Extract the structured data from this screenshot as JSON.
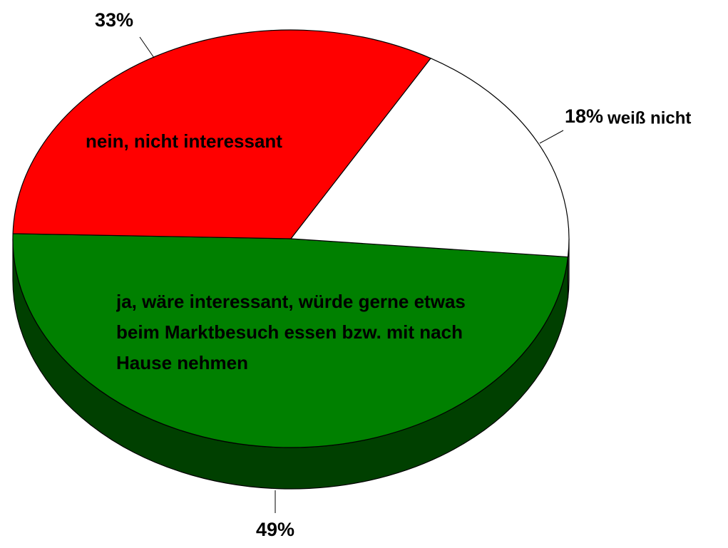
{
  "chart_data": {
    "type": "pie",
    "categories": [
      "ja, wäre interessant, würde gerne etwas beim Marktbesuch essen bzw. mit nach Hause nehmen",
      "nein, nicht interessant",
      "weiß nicht"
    ],
    "values": [
      49,
      33,
      18
    ],
    "value_labels": [
      "49%",
      "33%",
      "18%"
    ],
    "colors": [
      "#008000",
      "#ff0000",
      "#ffffff"
    ],
    "side_colors": [
      "#004000",
      "#800000",
      "#8c8c8c"
    ]
  }
}
